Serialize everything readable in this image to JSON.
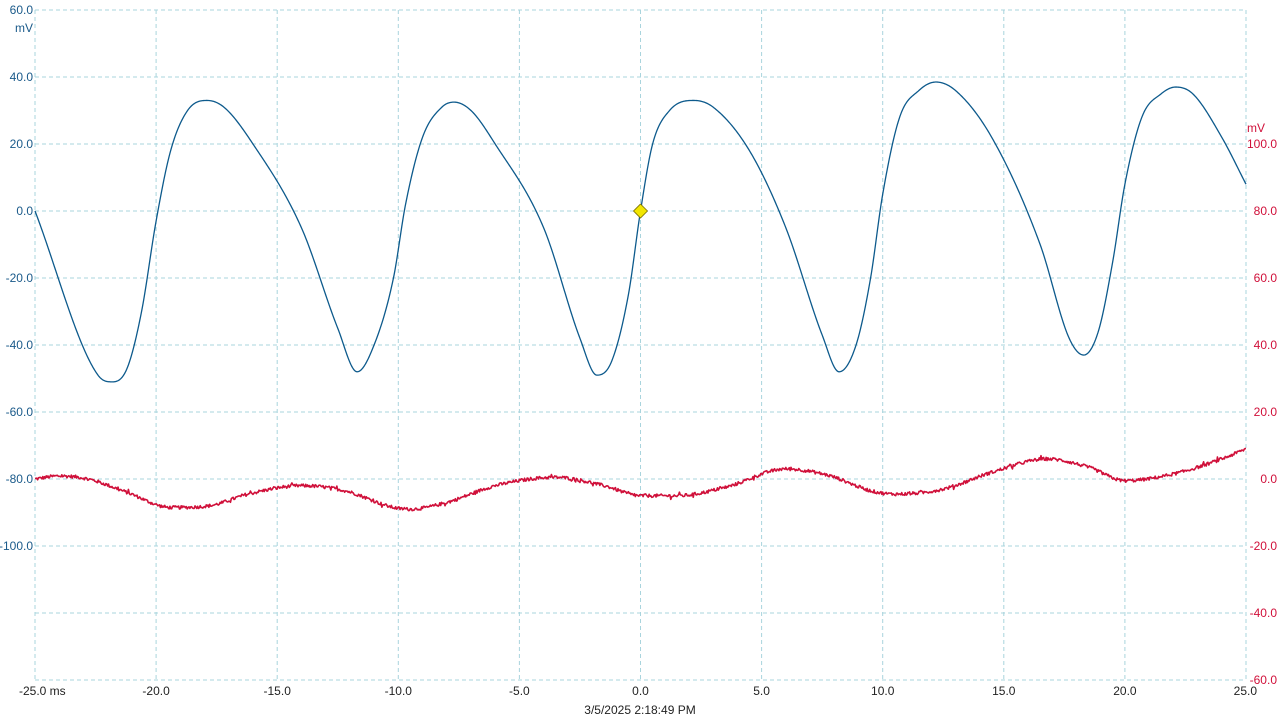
{
  "chart_data": {
    "type": "line",
    "timestamp": "3/5/2025 2:18:49 PM",
    "x_axis": {
      "min": -25,
      "max": 25,
      "ticks": [
        -25,
        -20,
        -15,
        -10,
        -5,
        0,
        5,
        10,
        15,
        20,
        25
      ],
      "tick_labels": [
        "-25.0 ms",
        "-20.0",
        "-15.0",
        "-10.0",
        "-5.0",
        "0.0",
        "5.0",
        "10.0",
        "15.0",
        "20.0",
        "25.0"
      ]
    },
    "left_axis": {
      "unit": "mV",
      "min": -140,
      "max": 60,
      "ticks": [
        60,
        40,
        20,
        0,
        -20,
        -40,
        -60,
        -80,
        -100
      ],
      "tick_labels": [
        "60.0",
        "40.0",
        "20.0",
        "0.0",
        "-20.0",
        "-40.0",
        "-60.0",
        "-80.0",
        "-100.0"
      ],
      "color": "#1a5a8a"
    },
    "right_axis": {
      "unit": "mV",
      "min": -60,
      "max": 140,
      "ticks": [
        100,
        80,
        60,
        40,
        20,
        0,
        -20,
        -40,
        -60
      ],
      "tick_labels": [
        "100.0",
        "80.0",
        "60.0",
        "40.0",
        "20.0",
        "0.0",
        "-20.0",
        "-40.0",
        "-60.0"
      ],
      "color": "#d0103a"
    },
    "grid": true,
    "trigger": {
      "x": 0,
      "y": 0,
      "color": "#f2e600"
    },
    "series": [
      {
        "axis": "left",
        "color": "#0d5a8c",
        "noise": 0,
        "points": [
          [
            -25.0,
            0
          ],
          [
            -22.4,
            -49
          ],
          [
            -21.8,
            -51
          ],
          [
            -21.2,
            -47
          ],
          [
            -20.6,
            -30
          ],
          [
            -20.0,
            -3
          ],
          [
            -19.4,
            18
          ],
          [
            -18.7,
            30
          ],
          [
            -17.9,
            33
          ],
          [
            -17.2,
            31
          ],
          [
            -16.0,
            20
          ],
          [
            -14.0,
            -5
          ],
          [
            -12.5,
            -35
          ],
          [
            -11.7,
            -48
          ],
          [
            -11.0,
            -40
          ],
          [
            -10.2,
            -20
          ],
          [
            -9.7,
            2
          ],
          [
            -9.0,
            22
          ],
          [
            -8.2,
            31
          ],
          [
            -7.7,
            32.5
          ],
          [
            -7.0,
            30
          ],
          [
            -6.0,
            20
          ],
          [
            -4.0,
            -5
          ],
          [
            -2.5,
            -38
          ],
          [
            -1.8,
            -49
          ],
          [
            -1.2,
            -45
          ],
          [
            -0.5,
            -25
          ],
          [
            0.0,
            0
          ],
          [
            0.5,
            20
          ],
          [
            1.2,
            30
          ],
          [
            2.2,
            33
          ],
          [
            3.0,
            31
          ],
          [
            4.5,
            18
          ],
          [
            6.0,
            -5
          ],
          [
            7.5,
            -37
          ],
          [
            8.2,
            -48
          ],
          [
            8.9,
            -40
          ],
          [
            9.5,
            -20
          ],
          [
            10.0,
            5
          ],
          [
            10.7,
            28
          ],
          [
            11.5,
            36
          ],
          [
            12.2,
            38.5
          ],
          [
            13.0,
            36
          ],
          [
            14.5,
            22
          ],
          [
            16.5,
            -10
          ],
          [
            17.7,
            -38
          ],
          [
            18.3,
            -43
          ],
          [
            18.9,
            -36
          ],
          [
            19.5,
            -15
          ],
          [
            20.0,
            8
          ],
          [
            20.7,
            28
          ],
          [
            21.5,
            35
          ],
          [
            22.1,
            37
          ],
          [
            22.8,
            35
          ],
          [
            24.0,
            22
          ],
          [
            25.0,
            8
          ]
        ]
      },
      {
        "axis": "right",
        "color": "#d0103a",
        "noise": 0.5,
        "points": [
          [
            -25.0,
            0
          ],
          [
            -24.0,
            0.9
          ],
          [
            -22.8,
            0
          ],
          [
            -21.2,
            -4
          ],
          [
            -19.4,
            -8.5
          ],
          [
            -17.8,
            -8
          ],
          [
            -16.2,
            -4.5
          ],
          [
            -14.0,
            -2
          ],
          [
            -12.2,
            -3.5
          ],
          [
            -10.2,
            -8.5
          ],
          [
            -9.5,
            -9
          ],
          [
            -8.0,
            -7
          ],
          [
            -6.0,
            -2
          ],
          [
            -3.5,
            0.5
          ],
          [
            -1.5,
            -2
          ],
          [
            0.0,
            -5
          ],
          [
            1.5,
            -5
          ],
          [
            3.5,
            -2.5
          ],
          [
            6.0,
            3
          ],
          [
            7.8,
            1
          ],
          [
            9.5,
            -3.5
          ],
          [
            10.5,
            -4.5
          ],
          [
            12.5,
            -3
          ],
          [
            14.5,
            2
          ],
          [
            16.8,
            6
          ],
          [
            18.5,
            3.5
          ],
          [
            20.0,
            -0.5
          ],
          [
            22.0,
            1.5
          ],
          [
            24.0,
            6
          ],
          [
            25.0,
            9
          ]
        ]
      }
    ]
  }
}
